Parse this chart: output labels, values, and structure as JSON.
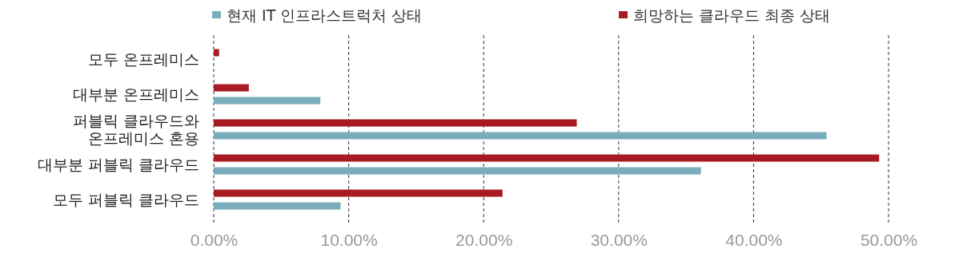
{
  "chart_data": {
    "type": "bar",
    "orientation": "horizontal",
    "categories": [
      "모두 온프레미스",
      "대부분 온프레미스",
      "퍼블릭 클라우드와\n온프레미스 혼용",
      "대부분 퍼블릭 클라우드",
      "모두 퍼블릭 클라우드"
    ],
    "series": [
      {
        "name": "현재 IT 인프라스트럭처 상태",
        "color": "#79adbb",
        "values": [
          0,
          7.9,
          45.4,
          36.1,
          9.4
        ]
      },
      {
        "name": "희망하는 클라우드 최종 상태",
        "color": "#a81b22",
        "values": [
          0.4,
          2.6,
          26.9,
          49.3,
          21.4
        ]
      }
    ],
    "xlim": [
      0,
      50
    ],
    "xticks": [
      {
        "value": 0,
        "label": "0.00%"
      },
      {
        "value": 10,
        "label": "10.00%"
      },
      {
        "value": 20,
        "label": "20.00%"
      },
      {
        "value": 30,
        "label": "30.00%"
      },
      {
        "value": 40,
        "label": "40.00%"
      },
      {
        "value": 50,
        "label": "50.00%"
      }
    ],
    "grid": "x",
    "legend": "top"
  }
}
